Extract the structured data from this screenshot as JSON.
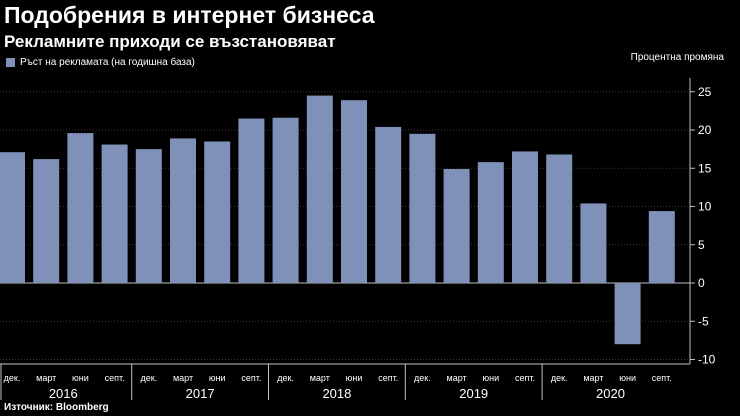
{
  "header": {
    "title": "Подобрения в интернет бизнеса",
    "subtitle": "Рекламните приходи се възстановяват"
  },
  "legend": {
    "label": "Ръст на рекламата (на годишна база)",
    "color": "#7f91b8"
  },
  "source": "Източник: Bloomberg",
  "chart_data": {
    "type": "bar",
    "title": "Подобрения в интернет бизнеса",
    "subtitle": "Рекламните приходи се възстановяват",
    "ylabel": "Процентна промяна",
    "xlabel": "",
    "ylim": [
      -10,
      26
    ],
    "yticks": [
      25,
      20,
      15,
      10,
      5,
      0,
      -5,
      -10
    ],
    "grid": true,
    "legend_position": "top-left",
    "categories": [
      "дек.",
      "март",
      "юни",
      "септ.",
      "дек.",
      "март",
      "юни",
      "септ.",
      "дек.",
      "март",
      "юни",
      "септ.",
      "дек.",
      "март",
      "юни",
      "септ.",
      "дек.",
      "март",
      "юни",
      "септ."
    ],
    "years": [
      {
        "label": "2016",
        "start": 0,
        "end": 3
      },
      {
        "label": "2017",
        "start": 4,
        "end": 7
      },
      {
        "label": "2018",
        "start": 8,
        "end": 11
      },
      {
        "label": "2019",
        "start": 12,
        "end": 15
      },
      {
        "label": "2020",
        "start": 16,
        "end": 19
      }
    ],
    "series": [
      {
        "name": "Ръст на рекламата (на годишна база)",
        "color": "#7f91b8",
        "values": [
          17.1,
          16.2,
          19.6,
          18.1,
          17.5,
          18.9,
          18.5,
          21.5,
          21.6,
          24.5,
          23.9,
          20.4,
          19.5,
          14.9,
          15.8,
          17.2,
          16.8,
          10.4,
          -8.0,
          9.4
        ]
      }
    ]
  }
}
